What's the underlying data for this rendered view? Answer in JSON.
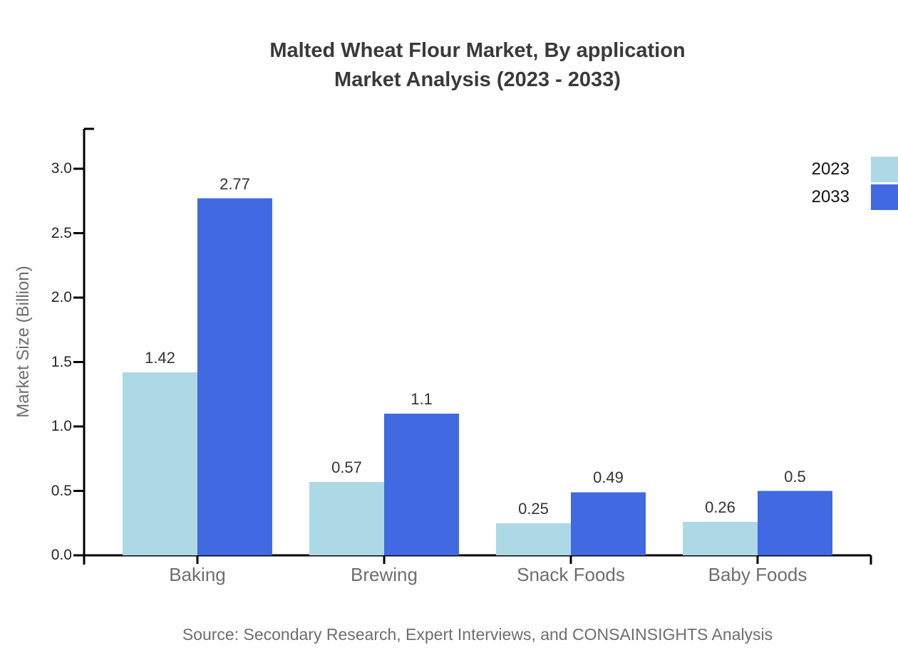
{
  "title": {
    "line1": "Malted Wheat Flour Market, By application",
    "line2": "Market Analysis (2023 - 2033)"
  },
  "source": "Source: Secondary Research, Expert Interviews, and CONSAINSIGHTS Analysis",
  "chart_data": {
    "type": "bar",
    "title": "Malted Wheat Flour Market, By application Market Analysis (2023 - 2033)",
    "categories": [
      "Baking",
      "Brewing",
      "Snack Foods",
      "Baby Foods"
    ],
    "series": [
      {
        "name": "2023",
        "color": "#ADD8E6",
        "values": [
          1.42,
          0.57,
          0.25,
          0.26
        ]
      },
      {
        "name": "2033",
        "color": "#4169E1",
        "values": [
          2.77,
          1.1,
          0.49,
          0.5
        ]
      }
    ],
    "xlabel": "",
    "ylabel": "Market Size (Billion)",
    "ylim": [
      0,
      3.3
    ],
    "yticks": [
      0.0,
      0.5,
      1.0,
      1.5,
      2.0,
      2.5,
      3.0
    ],
    "ytick_labels": [
      "0.0",
      "0.5",
      "1.0",
      "1.5",
      "2.0",
      "2.5",
      "3.0"
    ],
    "grid": false,
    "legend_position": "top-right",
    "value_labels_shown": true,
    "axis_color": "#000000"
  }
}
